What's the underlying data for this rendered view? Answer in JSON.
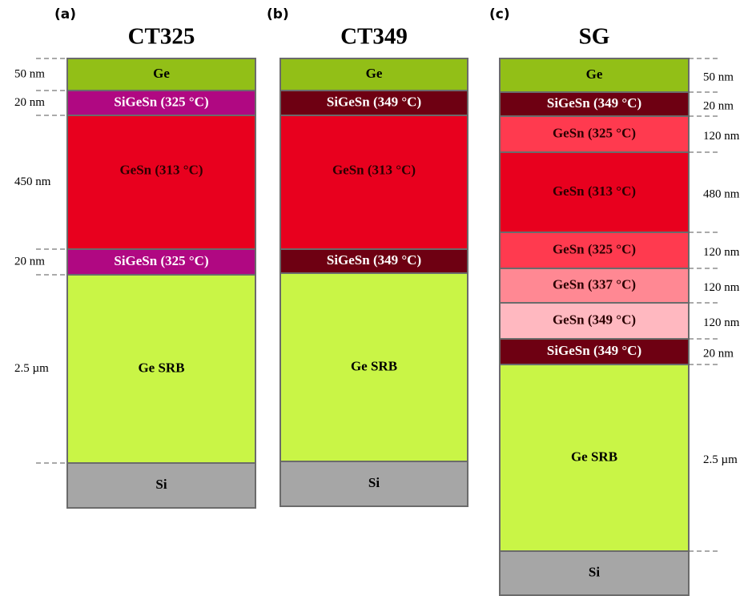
{
  "panels": [
    {
      "label": "(a)",
      "title": "CT325",
      "layers": [
        {
          "name": "Ge",
          "thickness": "50 nm",
          "color": "#92bf17",
          "text_color": "#000000"
        },
        {
          "name": "SiGeSn (325 °C)",
          "thickness": "20 nm",
          "color": "#b00882",
          "text_color": "#ffffff"
        },
        {
          "name": "GeSn (313 °C)",
          "thickness": "450 nm",
          "color": "#e8001e",
          "text_color": "#2a0000"
        },
        {
          "name": "SiGeSn (325 °C)",
          "thickness": "20 nm",
          "color": "#b00882",
          "text_color": "#ffffff"
        },
        {
          "name": "Ge SRB",
          "thickness": "2.5 µm",
          "color": "#c9f546",
          "text_color": "#000000"
        },
        {
          "name": "Si",
          "color": "#a6a6a6",
          "text_color": "#000000"
        }
      ]
    },
    {
      "label": "(b)",
      "title": "CT349",
      "layers": [
        {
          "name": "Ge",
          "color": "#92bf17",
          "text_color": "#000000"
        },
        {
          "name": "SiGeSn (349 °C)",
          "color": "#6e0012",
          "text_color": "#ffffff"
        },
        {
          "name": "GeSn (313 °C)",
          "color": "#e8001e",
          "text_color": "#2a0000"
        },
        {
          "name": "SiGeSn (349 °C)",
          "color": "#6e0012",
          "text_color": "#ffffff"
        },
        {
          "name": "Ge SRB",
          "color": "#c9f546",
          "text_color": "#000000"
        },
        {
          "name": "Si",
          "color": "#a6a6a6",
          "text_color": "#000000"
        }
      ]
    },
    {
      "label": "(c)",
      "title": "SG",
      "layers": [
        {
          "name": "Ge",
          "thickness": "50 nm",
          "color": "#92bf17",
          "text_color": "#000000"
        },
        {
          "name": "SiGeSn (349 °C)",
          "thickness": "20 nm",
          "color": "#6e0012",
          "text_color": "#ffffff"
        },
        {
          "name": "GeSn (325 °C)",
          "thickness": "120 nm",
          "color": "#ff3a4f",
          "text_color": "#2a0000"
        },
        {
          "name": "GeSn (313 °C)",
          "thickness": "480 nm",
          "color": "#e8001e",
          "text_color": "#2a0000"
        },
        {
          "name": "GeSn (325 °C)",
          "thickness": "120 nm",
          "color": "#ff3a4f",
          "text_color": "#2a0000"
        },
        {
          "name": "GeSn (337 °C)",
          "thickness": "120 nm",
          "color": "#ff8893",
          "text_color": "#2a0000"
        },
        {
          "name": "GeSn (349 °C)",
          "thickness": "120 nm",
          "color": "#ffb8c0",
          "text_color": "#2a0000"
        },
        {
          "name": "SiGeSn (349 °C)",
          "thickness": "20 nm",
          "color": "#6e0012",
          "text_color": "#ffffff"
        },
        {
          "name": "Ge SRB",
          "thickness": "2.5 µm",
          "color": "#c9f546",
          "text_color": "#000000"
        },
        {
          "name": "Si",
          "color": "#a6a6a6",
          "text_color": "#000000"
        }
      ]
    }
  ]
}
